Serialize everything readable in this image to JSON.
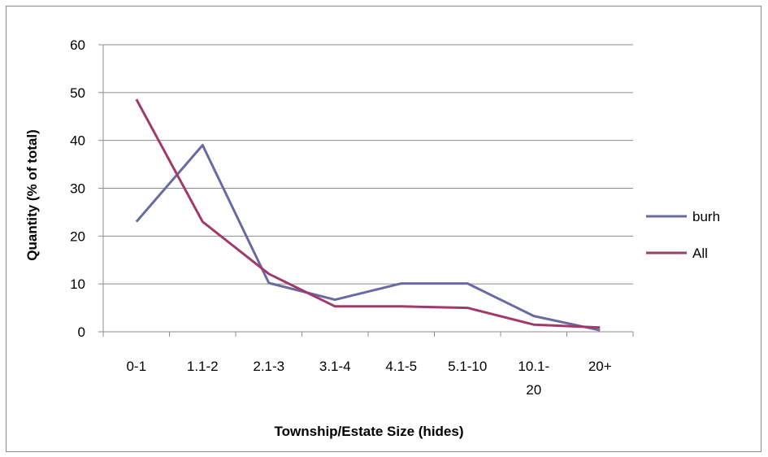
{
  "chart_data": {
    "type": "line",
    "title": "",
    "xlabel": "Township/Estate Size (hides)",
    "ylabel": "Quantity (% of total)",
    "categories": [
      "0-1",
      "1.1-2",
      "2.1-3",
      "3.1-4",
      "4.1-5",
      "5.1-10",
      "10.1-20",
      "20+"
    ],
    "category_lines": [
      [
        "0-1"
      ],
      [
        "1.1-2"
      ],
      [
        "2.1-3"
      ],
      [
        "3.1-4"
      ],
      [
        "4.1-5"
      ],
      [
        "5.1-10"
      ],
      [
        "10.1-",
        "20"
      ],
      [
        "20+"
      ]
    ],
    "ylim": [
      0,
      60
    ],
    "yticks": [
      "0",
      "10",
      "20",
      "30",
      "40",
      "50",
      "60"
    ],
    "grid": true,
    "legend_position": "right",
    "series": [
      {
        "name": "burh",
        "color": "#6a6aa2",
        "values": [
          23,
          39,
          10.2,
          6.7,
          10.1,
          10.1,
          3.3,
          0.3
        ]
      },
      {
        "name": "All",
        "color": "#a03a6a",
        "values": [
          48.6,
          23,
          12.1,
          5.3,
          5.3,
          5,
          1.5,
          0.9
        ]
      }
    ]
  }
}
